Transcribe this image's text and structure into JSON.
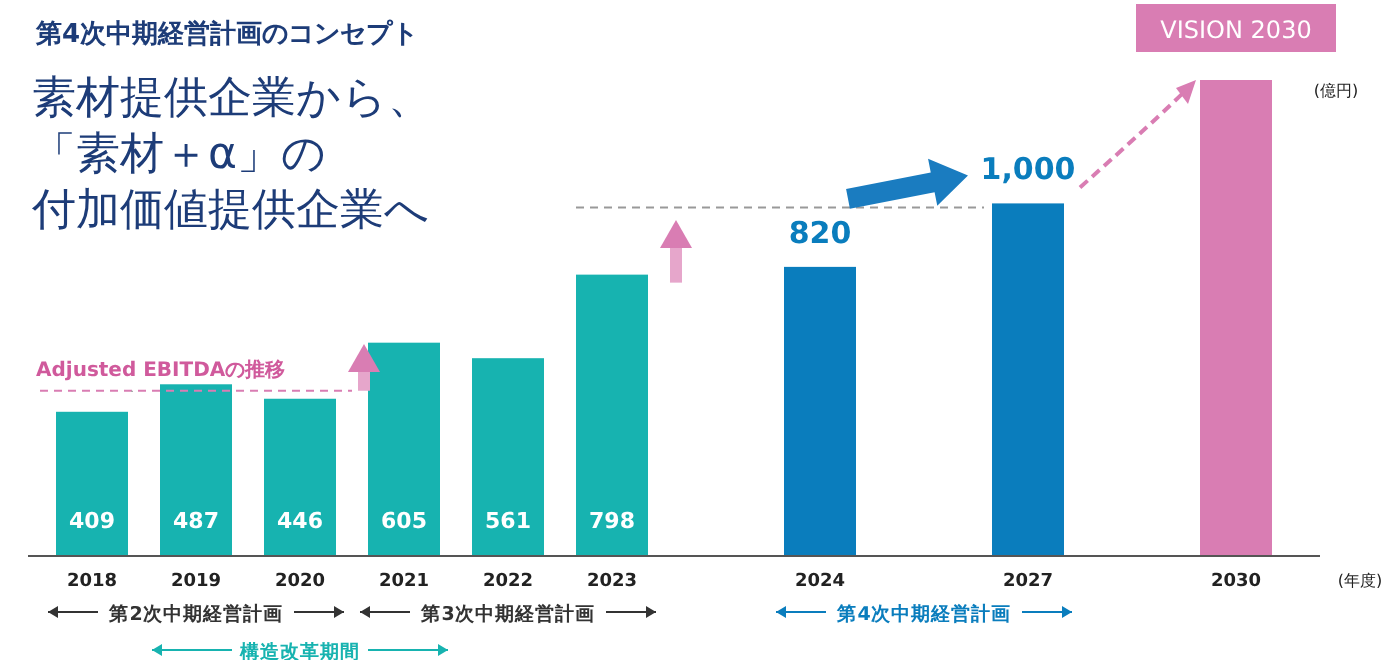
{
  "chart_data": {
    "type": "bar",
    "title": "第4次中期経営計画のコンセプト",
    "subtitle": "素材提供企業から、「素材＋α」の付加価値提供企業へ",
    "categories": [
      "2018",
      "2019",
      "2020",
      "2021",
      "2022",
      "2023",
      null,
      "2024",
      null,
      "2027",
      null,
      "2030"
    ],
    "values": [
      409,
      487,
      446,
      605,
      561,
      798,
      null,
      820,
      null,
      1000,
      null,
      1350
    ],
    "value_labels": [
      "409",
      "487",
      "446",
      "605",
      "561",
      "798",
      null,
      "820",
      null,
      "1,000",
      null,
      null
    ],
    "colors": [
      "#17b3b0",
      "#17b3b0",
      "#17b3b0",
      "#17b3b0",
      "#17b3b0",
      "#17b3b0",
      null,
      "#0a7dbd",
      null,
      "#0a7dbd",
      null,
      "#d97db3"
    ],
    "annotations": [
      "Adjusted EBITDAの推移",
      "VISION 2030",
      "(億円)",
      "(年度)",
      "第2次中期経営計画",
      "第3次中期経営計画",
      "第4次中期経営計画",
      "構造改革期間"
    ]
  }
}
